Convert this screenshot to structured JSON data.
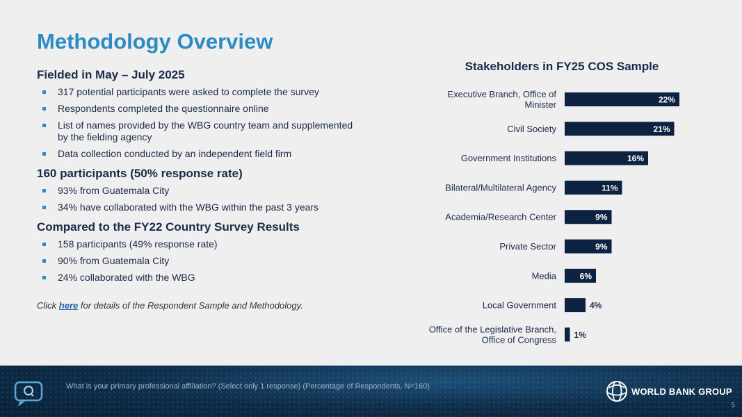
{
  "slide": {
    "title": "Methodology Overview",
    "page_number": "5"
  },
  "sections": [
    {
      "heading": "Fielded in May – July 2025",
      "bullets": [
        "317 potential participants were asked to complete the survey",
        "Respondents completed the questionnaire online",
        "List of names provided by the WBG country team and supplemented by the fielding agency",
        "Data collection conducted by an independent field firm"
      ]
    },
    {
      "heading": "160 participants (50% response rate)",
      "bullets": [
        "93% from Guatemala City",
        "34% have collaborated with the WBG within the past 3 years"
      ]
    },
    {
      "heading": "Compared to the FY22 Country Survey Results",
      "bullets": [
        "158 participants (49% response rate)",
        "90% from Guatemala City",
        "24% collaborated with the WBG"
      ]
    }
  ],
  "note": {
    "prefix": "Click ",
    "link": "here",
    "suffix": " for details of the Respondent Sample and Methodology."
  },
  "footer": {
    "question": "What is your primary professional affiliation?  (Select only 1 response)  (Percentage of Respondents, N=160)",
    "logo_text": "WORLD BANK GROUP"
  },
  "colors": {
    "title": "#2c8bc4",
    "bar": "#0d2240",
    "bullet": "#2c8bc4"
  },
  "chart_data": {
    "type": "bar",
    "orientation": "horizontal",
    "title": "Stakeholders in FY25 COS Sample",
    "categories": [
      "Executive Branch, Office of Minister",
      "Civil Society",
      "Government Institutions",
      "Bilateral/Multilateral Agency",
      "Academia/Research Center",
      "Private Sector",
      "Media",
      "Local Government",
      "Office of the Legislative Branch, Office of Congress"
    ],
    "category_lines": [
      [
        "Executive Branch, Office of",
        "Minister"
      ],
      [
        "Civil Society"
      ],
      [
        "Government Institutions"
      ],
      [
        "Bilateral/Multilateral Agency"
      ],
      [
        "Academia/Research Center"
      ],
      [
        "Private Sector"
      ],
      [
        "Media"
      ],
      [
        "Local Government"
      ],
      [
        "Office of the Legislative Branch,",
        "Office of Congress"
      ]
    ],
    "values": [
      22,
      21,
      16,
      11,
      9,
      9,
      6,
      4,
      1
    ],
    "value_labels": [
      "22%",
      "21%",
      "16%",
      "11%",
      "9%",
      "9%",
      "6%",
      "4%",
      "1%"
    ],
    "xlim": [
      0,
      25
    ],
    "grid": false,
    "legend": "none"
  }
}
